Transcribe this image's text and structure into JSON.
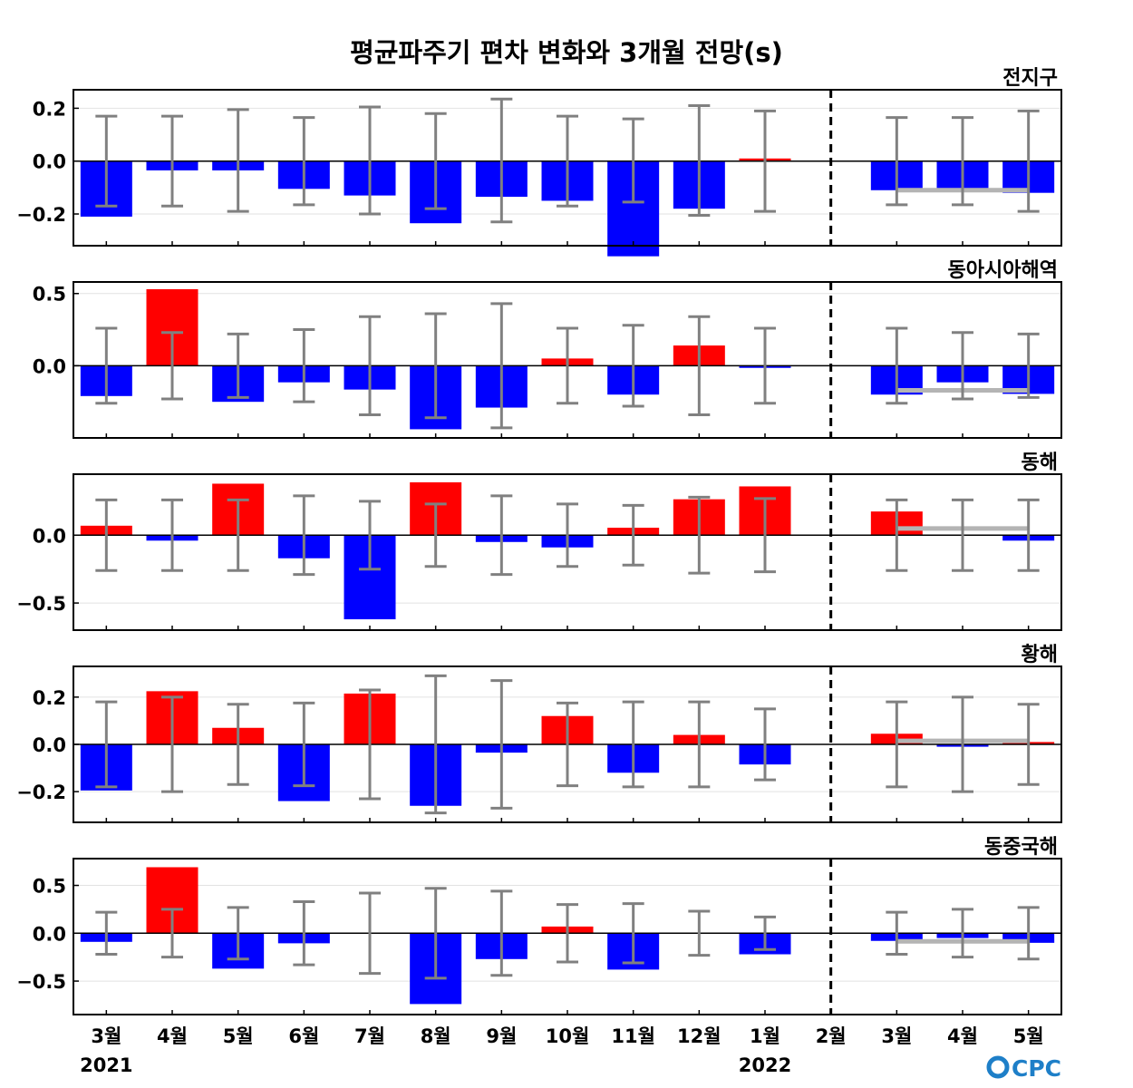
{
  "chart_data": {
    "type": "bar",
    "title": "평균파주기 편차 변화와 3개월 전망(s)",
    "categories": [
      "3월",
      "4월",
      "5월",
      "6월",
      "7월",
      "8월",
      "9월",
      "10월",
      "11월",
      "12월",
      "1월",
      "2월",
      "3월",
      "4월",
      "5월"
    ],
    "year_labels": [
      {
        "category_index": 0,
        "label": "2021"
      },
      {
        "category_index": 10,
        "label": "2022"
      }
    ],
    "forecast_divider_after_category": "2월",
    "colors": {
      "positive": "#ff0000",
      "negative": "#0000ff",
      "error_bar": "#808080",
      "forecast_line": "#b4b4b4"
    },
    "logo": "CPC",
    "panels": [
      {
        "name": "전지구",
        "ylim": [
          -0.32,
          0.27
        ],
        "yticks": [
          {
            "value": 0.2,
            "label": "0.2"
          },
          {
            "value": 0.0,
            "label": "0.0"
          },
          {
            "value": -0.2,
            "label": "−0.2"
          }
        ],
        "values": [
          -0.21,
          -0.035,
          -0.035,
          -0.105,
          -0.13,
          -0.235,
          -0.135,
          -0.15,
          -0.36,
          -0.18,
          0.01,
          0.0,
          -0.11,
          -0.105,
          -0.12
        ],
        "error_bars": [
          [
            -0.17,
            0.17
          ],
          [
            -0.17,
            0.17
          ],
          [
            -0.19,
            0.195
          ],
          [
            -0.165,
            0.165
          ],
          [
            -0.2,
            0.205
          ],
          [
            -0.18,
            0.18
          ],
          [
            -0.23,
            0.235
          ],
          [
            -0.17,
            0.17
          ],
          [
            -0.155,
            0.16
          ],
          [
            -0.205,
            0.21
          ],
          [
            -0.19,
            0.19
          ],
          null,
          [
            -0.165,
            0.165
          ],
          [
            -0.165,
            0.165
          ],
          [
            -0.19,
            0.19
          ]
        ],
        "forecast_line": -0.11
      },
      {
        "name": "동아시아해역",
        "ylim": [
          -0.5,
          0.58
        ],
        "yticks": [
          {
            "value": 0.5,
            "label": "0.5"
          },
          {
            "value": 0.0,
            "label": "0.0"
          }
        ],
        "values": [
          -0.21,
          0.53,
          -0.25,
          -0.115,
          -0.165,
          -0.44,
          -0.29,
          0.05,
          -0.2,
          0.14,
          -0.015,
          0.0,
          -0.2,
          -0.115,
          -0.195
        ],
        "error_bars": [
          [
            -0.26,
            0.26
          ],
          [
            -0.23,
            0.23
          ],
          [
            -0.22,
            0.22
          ],
          [
            -0.25,
            0.25
          ],
          [
            -0.34,
            0.34
          ],
          [
            -0.36,
            0.36
          ],
          [
            -0.43,
            0.43
          ],
          [
            -0.26,
            0.26
          ],
          [
            -0.28,
            0.28
          ],
          [
            -0.34,
            0.34
          ],
          [
            -0.26,
            0.26
          ],
          null,
          [
            -0.26,
            0.26
          ],
          [
            -0.23,
            0.23
          ],
          [
            -0.22,
            0.22
          ]
        ],
        "forecast_line": -0.17
      },
      {
        "name": "동해",
        "ylim": [
          -0.7,
          0.45
        ],
        "yticks": [
          {
            "value": 0.0,
            "label": "0.0"
          },
          {
            "value": -0.5,
            "label": "−0.5"
          }
        ],
        "values": [
          0.07,
          -0.04,
          0.38,
          -0.17,
          -0.62,
          0.39,
          -0.05,
          -0.09,
          0.055,
          0.265,
          0.36,
          0.0,
          0.175,
          0.0,
          -0.04
        ],
        "error_bars": [
          [
            -0.26,
            0.26
          ],
          [
            -0.26,
            0.26
          ],
          [
            -0.26,
            0.26
          ],
          [
            -0.29,
            0.29
          ],
          [
            -0.25,
            0.25
          ],
          [
            -0.23,
            0.23
          ],
          [
            -0.29,
            0.29
          ],
          [
            -0.23,
            0.23
          ],
          [
            -0.22,
            0.22
          ],
          [
            -0.28,
            0.28
          ],
          [
            -0.27,
            0.27
          ],
          null,
          [
            -0.26,
            0.26
          ],
          [
            -0.26,
            0.26
          ],
          [
            -0.26,
            0.26
          ]
        ],
        "forecast_line": 0.05
      },
      {
        "name": "황해",
        "ylim": [
          -0.33,
          0.33
        ],
        "yticks": [
          {
            "value": 0.2,
            "label": "0.2"
          },
          {
            "value": 0.0,
            "label": "0.0"
          },
          {
            "value": -0.2,
            "label": "−0.2"
          }
        ],
        "values": [
          -0.195,
          0.225,
          0.07,
          -0.24,
          0.215,
          -0.26,
          -0.035,
          0.12,
          -0.12,
          0.04,
          -0.085,
          0.0,
          0.045,
          -0.01,
          0.01
        ],
        "error_bars": [
          [
            -0.18,
            0.18
          ],
          [
            -0.2,
            0.2
          ],
          [
            -0.17,
            0.17
          ],
          [
            -0.175,
            0.175
          ],
          [
            -0.23,
            0.23
          ],
          [
            -0.29,
            0.29
          ],
          [
            -0.27,
            0.27
          ],
          [
            -0.175,
            0.175
          ],
          [
            -0.18,
            0.18
          ],
          [
            -0.18,
            0.18
          ],
          [
            -0.15,
            0.15
          ],
          null,
          [
            -0.18,
            0.18
          ],
          [
            -0.2,
            0.2
          ],
          [
            -0.17,
            0.17
          ]
        ],
        "forecast_line": 0.015
      },
      {
        "name": "동중국해",
        "ylim": [
          -0.85,
          0.78
        ],
        "yticks": [
          {
            "value": 0.5,
            "label": "0.5"
          },
          {
            "value": 0.0,
            "label": "0.0"
          },
          {
            "value": -0.5,
            "label": "−0.5"
          }
        ],
        "values": [
          -0.09,
          0.69,
          -0.37,
          -0.105,
          0.0,
          -0.74,
          -0.27,
          0.07,
          -0.38,
          0.0,
          -0.22,
          0.0,
          -0.08,
          -0.05,
          -0.1
        ],
        "error_bars": [
          [
            -0.22,
            0.22
          ],
          [
            -0.25,
            0.25
          ],
          [
            -0.27,
            0.27
          ],
          [
            -0.33,
            0.33
          ],
          [
            -0.42,
            0.42
          ],
          [
            -0.47,
            0.47
          ],
          [
            -0.44,
            0.44
          ],
          [
            -0.3,
            0.3
          ],
          [
            -0.31,
            0.31
          ],
          [
            -0.23,
            0.23
          ],
          [
            -0.17,
            0.17
          ],
          null,
          [
            -0.22,
            0.22
          ],
          [
            -0.25,
            0.25
          ],
          [
            -0.27,
            0.27
          ]
        ],
        "forecast_line": -0.085
      }
    ]
  }
}
